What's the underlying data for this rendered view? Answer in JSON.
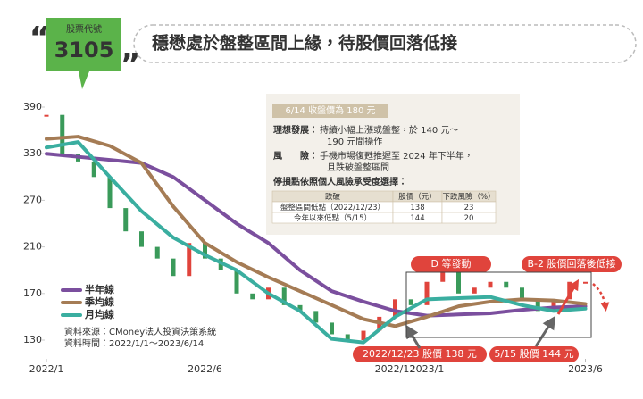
{
  "header": {
    "badge_label": "股票代號",
    "code": "3105",
    "title": "穩懋處於盤整區間上緣，待股價回落低接"
  },
  "chart_data": {
    "type": "line",
    "x": [
      0,
      1,
      2,
      3,
      4,
      5,
      6,
      7,
      8,
      9,
      10,
      11,
      12,
      13,
      14,
      15,
      16,
      17
    ],
    "series": [
      {
        "name": "半年線",
        "color": "#7b4f9e",
        "values": [
          330,
          326,
          322,
          318,
          300,
          270,
          240,
          215,
          190,
          172,
          163,
          155,
          151,
          152,
          153,
          156,
          158,
          159
        ]
      },
      {
        "name": "季均線",
        "color": "#a57c55",
        "values": [
          349,
          352,
          340,
          318,
          262,
          215,
          197,
          184,
          172,
          160,
          148,
          142,
          150,
          159,
          163,
          165,
          164,
          161
        ]
      },
      {
        "name": "月均線",
        "color": "#3aaea0",
        "values": [
          338,
          345,
          300,
          256,
          222,
          203,
          190,
          170,
          155,
          131,
          128,
          150,
          165,
          166,
          167,
          160,
          155,
          157
        ]
      }
    ],
    "price": {
      "up_color": "#e0443c",
      "down_color": "#3a9a5a",
      "x": [
        0,
        0.5,
        1,
        1.5,
        2,
        2.5,
        3,
        3.5,
        4,
        4.5,
        5,
        5.5,
        6,
        6.5,
        7,
        7.5,
        8,
        8.5,
        9,
        9.5,
        10,
        10.5,
        11,
        11.5,
        12,
        12.5,
        13,
        13.5,
        14,
        14.5,
        15,
        15.5,
        16,
        16.5,
        17
      ],
      "values": [
        380,
        330,
        320,
        300,
        260,
        230,
        210,
        200,
        185,
        215,
        200,
        190,
        170,
        165,
        175,
        160,
        155,
        145,
        135,
        130,
        138,
        150,
        165,
        160,
        180,
        190,
        170,
        175,
        180,
        175,
        165,
        155,
        165,
        180,
        180
      ]
    },
    "xlim": [
      0,
      17.5
    ],
    "xticks": [
      {
        "value": 0,
        "label": "2022/1"
      },
      {
        "value": 5,
        "label": "2022/6"
      },
      {
        "value": 11,
        "label": "2022/12"
      },
      {
        "value": 12,
        "label": "2023/1"
      },
      {
        "value": 17,
        "label": "2023/6"
      }
    ],
    "ylim": [
      120,
      400
    ],
    "yticks": [
      390,
      330,
      270,
      210,
      170,
      130
    ],
    "annotations": [
      {
        "text": "D 等發動",
        "color": "#e0443c"
      },
      {
        "text": "B-2 股價回落後低接",
        "color": "#e0443c"
      },
      {
        "text": "2022/12/23 股價 138 元",
        "color": "#e0443c"
      },
      {
        "text": "5/15 股價 144 元",
        "color": "#e0443c"
      }
    ],
    "source": [
      "資料來源：CMoney法人投資決策系統",
      "資料時間：2022/1/1～2023/6/14"
    ]
  },
  "note": {
    "headline": "6/14 收盤價為 180 元",
    "ideal_label": "理想發展：",
    "ideal_lines": [
      "持續小幅上漲或盤整，於 140 元～",
      "190 元間操作"
    ],
    "risk_label": "風　　險：",
    "risk_lines": [
      "手機市場復甦推遲至 2024 年下半年，",
      "且跌破盤整區間"
    ],
    "stop_label": "停損點依照個人風險承受度選擇：",
    "table": {
      "header": [
        "跌破",
        "股價（元）",
        "下跌風險（%）"
      ],
      "rows": [
        [
          "盤整區間低點（2022/12/23）",
          "138",
          "23"
        ],
        [
          "今年以來低點（5/15）",
          "144",
          "20"
        ]
      ]
    }
  }
}
